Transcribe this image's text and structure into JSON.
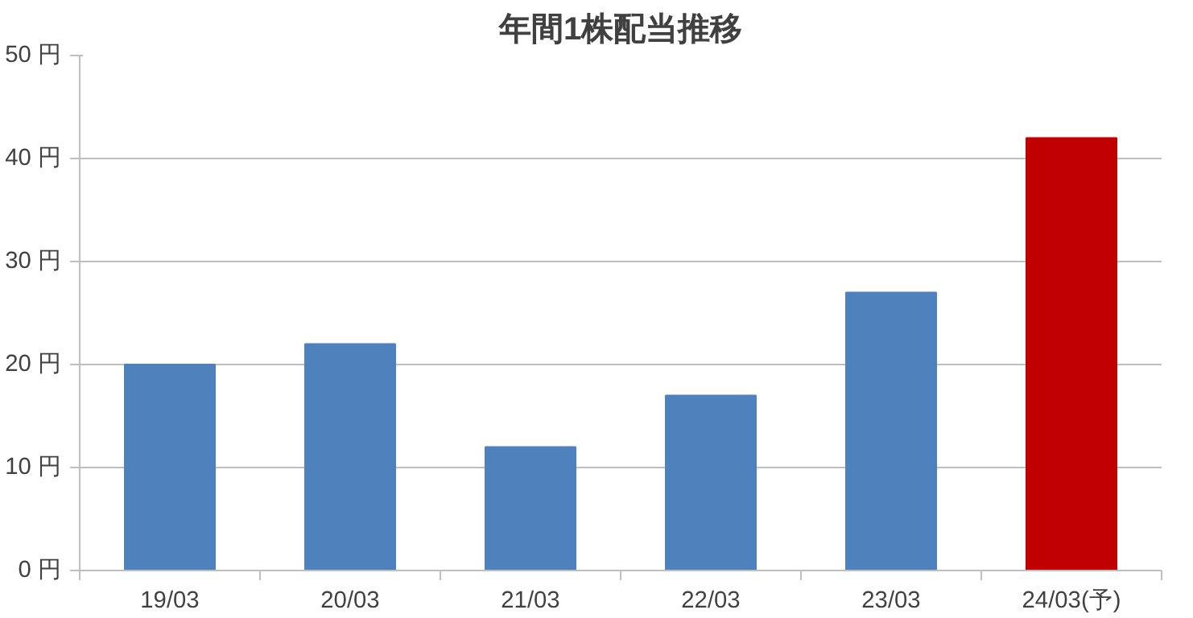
{
  "chart_data": {
    "type": "bar",
    "title": "年間1株配当推移",
    "categories": [
      "19/03",
      "20/03",
      "21/03",
      "22/03",
      "23/03",
      "24/03(予)"
    ],
    "values": [
      20,
      22,
      12,
      17,
      27,
      42
    ],
    "colors": [
      "#4f81bd",
      "#4f81bd",
      "#4f81bd",
      "#4f81bd",
      "#4f81bd",
      "#c00000"
    ],
    "ylim": [
      0,
      50
    ],
    "yticks": [
      {
        "value": 0,
        "label": "0 円"
      },
      {
        "value": 10,
        "label": "10 円"
      },
      {
        "value": 20,
        "label": "20 円"
      },
      {
        "value": 30,
        "label": "30 円"
      },
      {
        "value": 40,
        "label": "40 円"
      },
      {
        "value": 50,
        "label": "50 円"
      }
    ],
    "grid": "y"
  }
}
